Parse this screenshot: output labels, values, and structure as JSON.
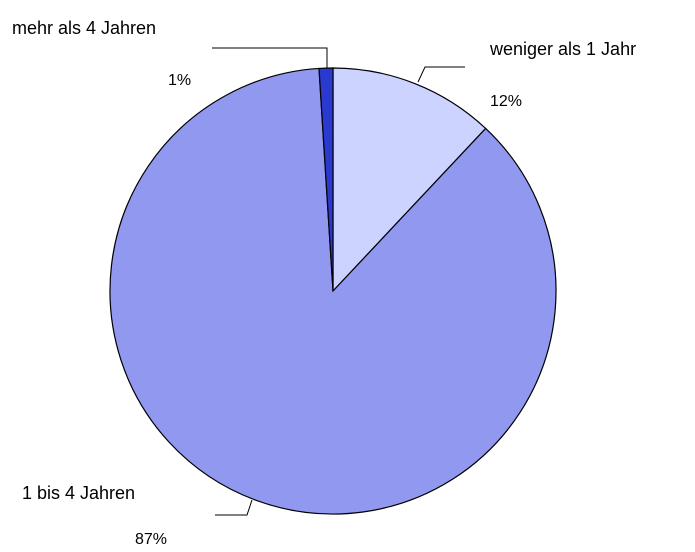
{
  "chart_data": {
    "type": "pie",
    "categories": [
      "weniger als 1 Jahr",
      "1 bis 4 Jahren",
      "mehr als 4 Jahren"
    ],
    "values": [
      12,
      87,
      1
    ],
    "value_labels": [
      "12%",
      "87%",
      "1%"
    ],
    "colors": [
      "#ccd3ff",
      "#9098f0",
      "#2a3ad0"
    ]
  }
}
